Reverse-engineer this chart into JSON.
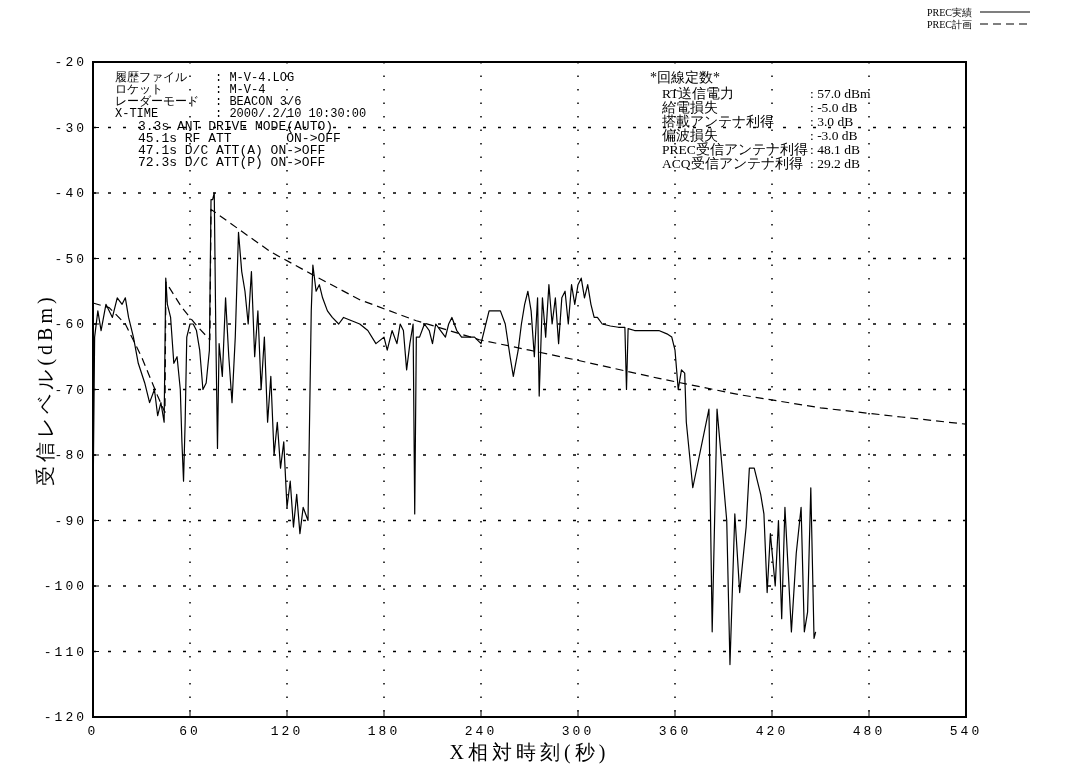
{
  "chart_data": {
    "type": "line",
    "xlabel": "X相対時刻(秒)",
    "ylabel": "受信レベル(dBm)",
    "xlim": [
      0,
      540
    ],
    "xticks": [
      0,
      60,
      120,
      180,
      240,
      300,
      360,
      420,
      480,
      540
    ],
    "ylim": [
      -120,
      -20
    ],
    "yticks": [
      -120,
      -110,
      -100,
      -90,
      -80,
      -70,
      -60,
      -50,
      -40,
      -30,
      -20
    ],
    "grid": true,
    "legend": "top right",
    "series": [
      {
        "name": "PREC実績",
        "color": "#000000",
        "line_style": "solid",
        "x": [
          0,
          1,
          3,
          5,
          8,
          12,
          15,
          18,
          20,
          22,
          25,
          28,
          32,
          35,
          38,
          40,
          42,
          44,
          45,
          46,
          48,
          50,
          52,
          54,
          55,
          56,
          57,
          58,
          60,
          62,
          64,
          66,
          68,
          70,
          72,
          73,
          74,
          75,
          76,
          77,
          78,
          80,
          82,
          84,
          86,
          88,
          90,
          92,
          94,
          96,
          98,
          100,
          102,
          104,
          106,
          108,
          110,
          112,
          114,
          116,
          118,
          120,
          122,
          124,
          126,
          128,
          130,
          133,
          135,
          136,
          138,
          140,
          142,
          145,
          148,
          152,
          155,
          160,
          165,
          170,
          175,
          180,
          182,
          185,
          188,
          190,
          192,
          194,
          196,
          198,
          199,
          200,
          202,
          205,
          208,
          210,
          212,
          215,
          218,
          220,
          222,
          225,
          228,
          232,
          236,
          240,
          242,
          245,
          248,
          252,
          255,
          258,
          260,
          263,
          265,
          267,
          269,
          271,
          273,
          275,
          276,
          278,
          280,
          282,
          284,
          286,
          288,
          290,
          292,
          294,
          296,
          298,
          300,
          302,
          304,
          306,
          308,
          310,
          312,
          315,
          320,
          325,
          329,
          330,
          331,
          335,
          340,
          345,
          350,
          355,
          358,
          360,
          362,
          364,
          366,
          367,
          371,
          381,
          383,
          386,
          392,
          394,
          397,
          400,
          404,
          406,
          409,
          413,
          415,
          417,
          419,
          422,
          424,
          426,
          428,
          432,
          435,
          438,
          440,
          442,
          444,
          446,
          447
        ],
        "values": [
          -88,
          -62,
          -58,
          -61,
          -57,
          -59,
          -56,
          -57,
          -56,
          -59,
          -62,
          -66,
          -69,
          -72,
          -70,
          -74,
          -72,
          -75,
          -53,
          -57,
          -59,
          -66,
          -65,
          -70,
          -78,
          -84,
          -75,
          -62,
          -60,
          -60,
          -61,
          -64,
          -70,
          -69,
          -64,
          -41,
          -41,
          -40,
          -62,
          -79,
          -63,
          -68,
          -56,
          -65,
          -72,
          -62,
          -46,
          -52,
          -55,
          -60,
          -52,
          -65,
          -58,
          -70,
          -62,
          -75,
          -68,
          -80,
          -75,
          -82,
          -78,
          -88,
          -84,
          -91,
          -86,
          -92,
          -88,
          -90,
          -58,
          -51,
          -55,
          -54,
          -56,
          -58,
          -59,
          -60,
          -59,
          -59.5,
          -60,
          -61,
          -63,
          -62,
          -64,
          -61,
          -63,
          -60,
          -61,
          -67,
          -63,
          -60,
          -89,
          -62,
          -62,
          -60,
          -61,
          -63,
          -60,
          -61,
          -62,
          -60,
          -59,
          -61,
          -62,
          -62,
          -62,
          -63,
          -61,
          -58,
          -58,
          -58,
          -60,
          -65,
          -68,
          -64,
          -60,
          -57,
          -55,
          -58,
          -65,
          -56,
          -71,
          -56,
          -62,
          -54,
          -60,
          -56,
          -63,
          -56,
          -55,
          -60,
          -54,
          -57,
          -54,
          -53,
          -56,
          -54,
          -57,
          -59,
          -59,
          -60,
          -60.3,
          -60.5,
          -60.5,
          -70,
          -60.7,
          -61,
          -61,
          -61,
          -61,
          -61.5,
          -62,
          -64,
          -70,
          -67,
          -67.5,
          -75,
          -85,
          -73,
          -107,
          -73,
          -90,
          -112,
          -89,
          -101,
          -91,
          -82,
          -82,
          -86,
          -89,
          -101,
          -92,
          -100,
          -90,
          -105,
          -88,
          -107,
          -95,
          -88,
          -107,
          -104,
          -85,
          -108,
          -107
        ]
      },
      {
        "name": "PREC計画",
        "color": "#000000",
        "line_style": "dashed",
        "x": [
          0,
          10,
          20,
          30,
          40,
          44.5,
          45.1,
          55,
          65,
          72.3,
          73,
          90,
          110,
          136,
          165,
          200,
          239,
          270,
          299,
          350,
          400,
          450,
          500,
          540
        ],
        "values": [
          -56.8,
          -57.5,
          -60,
          -65,
          -71,
          -73.5,
          -53.6,
          -57.5,
          -60.5,
          -62.4,
          -42.5,
          -45.5,
          -49,
          -52.5,
          -56.3,
          -59.5,
          -62.4,
          -64,
          -65.5,
          -68.3,
          -70.8,
          -72.8,
          -74.2,
          -75.3
        ]
      }
    ],
    "annotations": [
      "履歴ファイル : M-V-4.LOG",
      "ロケット : M-V-4",
      "レーダーモード : BEACON 3/6",
      "X-TIME : 2000/.2/10 10:30:00",
      "3.3s ANT DRIVE MODE(AUTO)",
      "45.1s RF ATT       ON->OFF",
      "47.1s D/C ATT(A) ON->OFF",
      "72.3s D/C ATT(P) ON->OFF",
      "*回線定数*",
      "RT送信電力 : 57.0 dBm",
      "給電損失 : -5.0 dB",
      "搭載アンテナ利得 : 3.0 dB",
      "偏波損失 : -3.0 dB",
      "PREC受信アンテナ利得 : 48.1 dB",
      "ACQ受信アンテナ利得 : 29.2 dB"
    ]
  }
}
